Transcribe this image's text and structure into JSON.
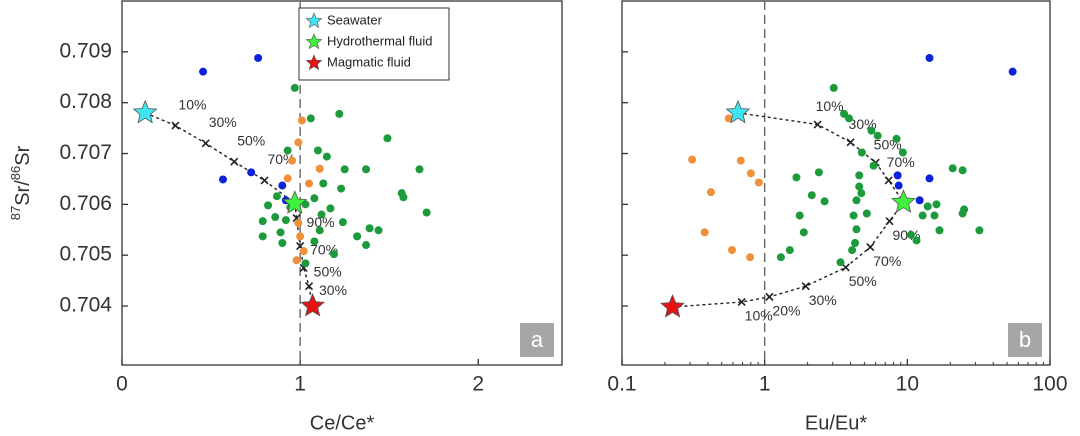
{
  "chart_data": [
    {
      "type": "scatter",
      "x_label": "Ce/Ce*",
      "y_label": [
        "87",
        "Sr/",
        "86",
        "Sr"
      ],
      "xlim": [
        0,
        2.47
      ],
      "ylim": [
        0.70284,
        0.71
      ],
      "xticks": [
        0,
        1,
        2
      ],
      "yticks": [
        0.704,
        0.705,
        0.706,
        0.707,
        0.708,
        0.709
      ],
      "show_ytick_labels": true,
      "log_x": false,
      "vline": 1,
      "legend": "upper center",
      "panel_label": "a",
      "series": [
        {
          "marker": "dot",
          "color": "#0c22d8",
          "x": [
            0.455,
            0.764,
            0.567,
            0.725,
            0.9,
            0.92
          ],
          "values": [
            0.70861,
            0.70888,
            0.70649,
            0.70663,
            0.70637,
            0.70608
          ]
        },
        {
          "marker": "dot",
          "color": "#f0913a",
          "x": [
            1.01,
            0.99,
            0.955,
            0.93,
            1.05,
            1.11,
            0.99,
            1.0,
            1.02,
            0.98
          ],
          "values": [
            0.70765,
            0.70722,
            0.70686,
            0.70651,
            0.70641,
            0.7067,
            0.70563,
            0.70537,
            0.70508,
            0.7049
          ]
        },
        {
          "marker": "dot",
          "color": "#1c9a3c",
          "x": [
            0.97,
            1.06,
            1.22,
            1.1,
            0.93,
            1.15,
            1.25,
            1.37,
            1.49,
            1.67,
            1.71,
            1.57,
            1.58,
            1.13,
            1.23,
            1.08,
            1.17,
            1.12,
            1.24,
            1.39,
            1.44,
            1.32,
            1.37,
            1.19,
            1.08,
            0.87,
            0.82,
            0.86,
            0.79,
            0.92,
            0.79,
            0.89,
            0.945,
            1.03,
            1.03,
            1.11,
            0.9
          ],
          "values": [
            0.70829,
            0.70769,
            0.70778,
            0.70706,
            0.70706,
            0.70694,
            0.70669,
            0.70669,
            0.7073,
            0.70669,
            0.70584,
            0.70622,
            0.70614,
            0.70641,
            0.70631,
            0.70612,
            0.70592,
            0.7058,
            0.70565,
            0.70553,
            0.70549,
            0.70537,
            0.7052,
            0.70502,
            0.70527,
            0.70616,
            0.70598,
            0.70575,
            0.70567,
            0.70569,
            0.70537,
            0.70545,
            0.70594,
            0.706,
            0.70484,
            0.70549,
            0.70524
          ]
        },
        {
          "marker": "x-line",
          "color": "#222222",
          "x": [
            0.13,
            0.3,
            0.47,
            0.63,
            0.8,
            0.97
          ],
          "values": [
            0.7078,
            0.70755,
            0.7072,
            0.70684,
            0.70647,
            0.70602
          ],
          "point_labels": [
            null,
            "10%",
            "30%",
            "50%",
            "70%",
            null
          ]
        },
        {
          "marker": "x-line",
          "color": "#222222",
          "x": [
            0.97,
            0.98,
            1.0,
            1.02,
            1.05,
            1.07
          ],
          "values": [
            0.70602,
            0.70573,
            0.70518,
            0.70475,
            0.70439,
            0.704
          ],
          "point_labels": [
            null,
            "90%",
            "70%",
            "50%",
            "30%",
            null
          ]
        },
        {
          "marker": "star",
          "name": "Seawater",
          "color": "#3fe3f2",
          "x": [
            0.13
          ],
          "values": [
            0.7078
          ]
        },
        {
          "marker": "star",
          "name": "Hydrothermal fluid",
          "color": "#3ef23e",
          "x": [
            0.97
          ],
          "values": [
            0.70602
          ]
        },
        {
          "marker": "star",
          "name": "Magmatic fluid",
          "color": "#e41414",
          "x": [
            1.07
          ],
          "values": [
            0.704
          ]
        }
      ]
    },
    {
      "type": "scatter",
      "x_label": "Eu/Eu*",
      "xlim": [
        0.1,
        100
      ],
      "ylim": [
        0.70284,
        0.71
      ],
      "xticks": [
        0.1,
        1,
        10,
        100
      ],
      "yticks": [
        0.704,
        0.705,
        0.706,
        0.707,
        0.708,
        0.709
      ],
      "show_ytick_labels": false,
      "log_x": true,
      "vline": 1,
      "panel_label": "b",
      "series": [
        {
          "marker": "dot",
          "color": "#0c22d8",
          "x": [
            14.3,
            54.7,
            14.3,
            8.55,
            12.2,
            8.7
          ],
          "values": [
            0.70888,
            0.70861,
            0.70651,
            0.70657,
            0.70608,
            0.70637
          ]
        },
        {
          "marker": "dot",
          "color": "#f0913a",
          "x": [
            0.56,
            0.31,
            0.68,
            0.8,
            0.91,
            0.42,
            0.38,
            0.59,
            0.79
          ],
          "values": [
            0.70769,
            0.70688,
            0.70686,
            0.70661,
            0.70643,
            0.70624,
            0.70545,
            0.7051,
            0.70496
          ]
        },
        {
          "marker": "dot",
          "color": "#1c9a3c",
          "x": [
            3.05,
            3.6,
            3.9,
            5.6,
            6.2,
            8.4,
            4.8,
            9.3,
            5.8,
            20.8,
            24.4,
            4.6,
            2.4,
            1.67,
            2.14,
            2.63,
            4.6,
            4.76,
            4.4,
            16,
            13.9,
            5.2,
            4.2,
            25,
            24.4,
            15.5,
            12.8,
            16.8,
            11.6,
            10.6,
            32,
            4.4,
            4.3,
            4.1,
            1.5,
            1.3,
            3.4,
            1.88,
            1.76
          ],
          "values": [
            0.70829,
            0.70778,
            0.70769,
            0.70745,
            0.70735,
            0.70729,
            0.70702,
            0.70702,
            0.70676,
            0.70671,
            0.70667,
            0.70657,
            0.70663,
            0.70653,
            0.70618,
            0.70606,
            0.70635,
            0.70622,
            0.70608,
            0.706,
            0.70596,
            0.70582,
            0.70578,
            0.7059,
            0.70582,
            0.70578,
            0.70578,
            0.70549,
            0.70529,
            0.7054,
            0.70549,
            0.70551,
            0.70524,
            0.7051,
            0.7051,
            0.70496,
            0.70486,
            0.70545,
            0.70578
          ]
        },
        {
          "marker": "x-line",
          "color": "#222222",
          "x": [
            0.65,
            2.35,
            4.0,
            6.0,
            7.4,
            9.4
          ],
          "values": [
            0.7078,
            0.70757,
            0.70722,
            0.70682,
            0.70647,
            0.70604
          ],
          "point_labels": [
            null,
            "10%",
            "30%",
            "50%",
            "70%",
            null
          ]
        },
        {
          "marker": "x-line",
          "color": "#222222",
          "x": [
            0.226,
            0.69,
            1.08,
            1.94,
            3.7,
            5.5,
            7.5,
            9.4
          ],
          "values": [
            0.70398,
            0.70408,
            0.70418,
            0.70439,
            0.70476,
            0.70516,
            0.70567,
            0.70604
          ],
          "point_labels": [
            null,
            "10%",
            "20%",
            "30%",
            "50%",
            "70%",
            "90%",
            null
          ]
        },
        {
          "marker": "star",
          "color": "#3fe3f2",
          "x": [
            0.65
          ],
          "values": [
            0.7078
          ]
        },
        {
          "marker": "star",
          "color": "#3ef23e",
          "x": [
            9.4
          ],
          "values": [
            0.70604
          ]
        },
        {
          "marker": "star",
          "color": "#e41414",
          "x": [
            0.226
          ],
          "values": [
            0.70398
          ]
        }
      ]
    }
  ]
}
